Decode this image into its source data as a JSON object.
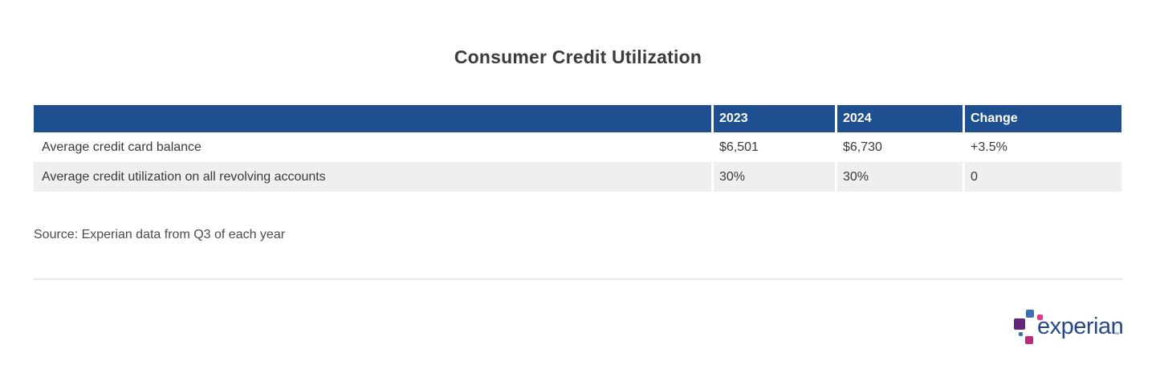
{
  "title": "Consumer Credit Utilization",
  "table": {
    "header": {
      "metric": "",
      "y2023": "2023",
      "y2024": "2024",
      "change": "Change"
    },
    "rows": [
      {
        "label": "Average credit card balance",
        "y2023": "$6,501",
        "y2024": "$6,730",
        "change": "+3.5%"
      },
      {
        "label": "Average credit utilization on all revolving accounts",
        "y2023": "30%",
        "y2024": "30%",
        "change": "0"
      }
    ]
  },
  "source": "Source: Experian data from Q3 of each year",
  "logo": {
    "wordmark": "experian",
    "trademark": "™"
  },
  "colors": {
    "header_bg": "#1d4f91",
    "header_text": "#ffffff",
    "row_alt_bg": "#efefef",
    "body_text": "#3a3a3a",
    "title_text": "#3c3c3c",
    "source_text": "#4b4b4b",
    "divider_line": "#e9e9e9",
    "logo_wordmark": "#26478d",
    "logo_blue": "#406eb3",
    "logo_magenta": "#e63888",
    "logo_purple": "#632678",
    "logo_pink": "#ba2f7d"
  },
  "chart_data": {
    "type": "table",
    "title": "Consumer Credit Utilization",
    "columns": [
      "",
      "2023",
      "2024",
      "Change"
    ],
    "rows": [
      [
        "Average credit card balance",
        "$6,501",
        "$6,730",
        "+3.5%"
      ],
      [
        "Average credit utilization on all revolving accounts",
        "30%",
        "30%",
        "0"
      ]
    ],
    "source_note": "Source: Experian data from Q3 of each year"
  }
}
